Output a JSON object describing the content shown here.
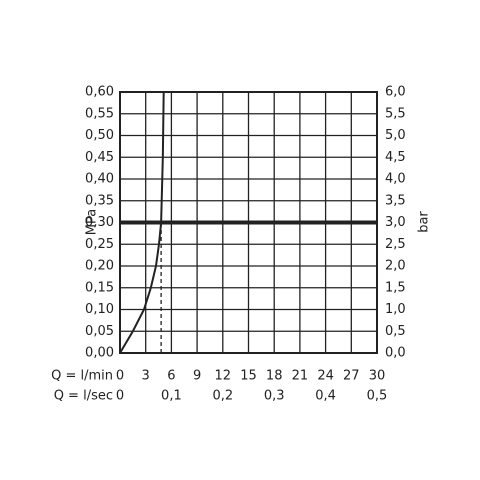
{
  "chart_data": {
    "type": "line",
    "ylabel": "MPa",
    "y2label": "bar",
    "xlabel": "Q = l/min",
    "x2label": "Q = l/sec",
    "xlim": [
      0,
      30
    ],
    "xticks": [
      0,
      3,
      6,
      9,
      12,
      15,
      18,
      21,
      24,
      27,
      30
    ],
    "x2lim": [
      0,
      0.5
    ],
    "x2ticks": [
      0,
      {
        "value": 0.1,
        "label": "0,1"
      },
      {
        "value": 0.2,
        "label": "0,2"
      },
      {
        "value": 0.3,
        "label": "0,3"
      },
      {
        "value": 0.4,
        "label": "0,4"
      },
      {
        "value": 0.5,
        "label": "0,5"
      }
    ],
    "ylim": [
      0,
      0.6
    ],
    "yticks": [
      {
        "value": 0,
        "label": "0,00"
      },
      {
        "value": 0.05,
        "label": "0,05"
      },
      {
        "value": 0.1,
        "label": "0,10"
      },
      {
        "value": 0.15,
        "label": "0,15"
      },
      {
        "value": 0.2,
        "label": "0,20"
      },
      {
        "value": 0.25,
        "label": "0,25"
      },
      {
        "value": 0.3,
        "label": "0,30"
      },
      {
        "value": 0.35,
        "label": "0,35"
      },
      {
        "value": 0.4,
        "label": "0,40"
      },
      {
        "value": 0.45,
        "label": "0,45"
      },
      {
        "value": 0.5,
        "label": "0,50"
      },
      {
        "value": 0.55,
        "label": "0,55"
      },
      {
        "value": 0.6,
        "label": "0,60"
      }
    ],
    "y2lim": [
      0,
      6
    ],
    "y2ticks": [
      {
        "value": 0,
        "label": "0,0"
      },
      {
        "value": 0.5,
        "label": "0,5"
      },
      {
        "value": 1,
        "label": "1,0"
      },
      {
        "value": 1.5,
        "label": "1,5"
      },
      {
        "value": 2,
        "label": "2,0"
      },
      {
        "value": 2.5,
        "label": "2,5"
      },
      {
        "value": 3,
        "label": "3,0"
      },
      {
        "value": 3.5,
        "label": "3,5"
      },
      {
        "value": 4,
        "label": "4,0"
      },
      {
        "value": 4.5,
        "label": "4,5"
      },
      {
        "value": 5,
        "label": "5,0"
      },
      {
        "value": 5.5,
        "label": "5,5"
      },
      {
        "value": 6,
        "label": "6,0"
      }
    ],
    "grid": true,
    "line_color": "#222222",
    "series": [
      {
        "color": "#222222",
        "x": [
          0,
          1.5,
          2.8,
          3.6,
          4.2,
          4.55,
          4.8,
          5.0,
          5.1
        ],
        "values": [
          0,
          0.05,
          0.1,
          0.15,
          0.2,
          0.25,
          0.3,
          0.45,
          0.6
        ]
      }
    ],
    "hline": 0.3,
    "vline": 4.8
  }
}
